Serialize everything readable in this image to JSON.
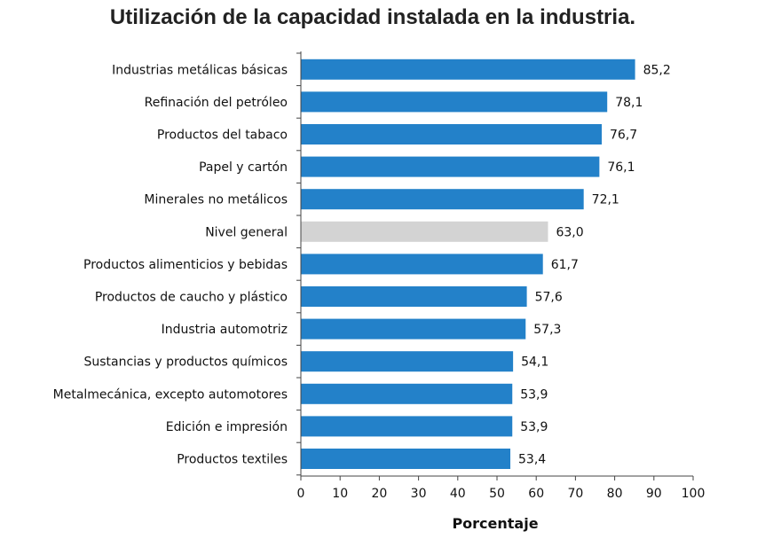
{
  "chart_data": {
    "type": "bar",
    "orientation": "horizontal",
    "title": "Utilización de la capacidad instalada en la industria.",
    "xlabel": "Porcentaje",
    "ylabel": "",
    "xlim": [
      0,
      100
    ],
    "x_ticks": [
      "0",
      "10",
      "20",
      "30",
      "40",
      "50",
      "60",
      "70",
      "80",
      "90",
      "100"
    ],
    "grid": false,
    "categories": [
      "Industrias metálicas básicas",
      "Refinación del petróleo",
      "Productos del tabaco",
      "Papel y cartón",
      "Minerales no metálicos",
      "Nivel general",
      "Productos alimenticios y bebidas",
      "Productos de caucho y plástico",
      "Industria automotriz",
      "Sustancias y productos químicos",
      "Metalmecánica, excepto automotores",
      "Edición e impresión",
      "Productos textiles"
    ],
    "values": [
      85.2,
      78.1,
      76.7,
      76.1,
      72.1,
      63.0,
      61.7,
      57.6,
      57.3,
      54.1,
      53.9,
      53.9,
      53.4
    ],
    "value_labels": [
      "85,2",
      "78,1",
      "76,7",
      "76,1",
      "72,1",
      "63,0",
      "61,7",
      "57,6",
      "57,3",
      "54,1",
      "53,9",
      "53,9",
      "53,4"
    ],
    "highlight_category": "Nivel general",
    "colors": {
      "bar": "#2381c9",
      "highlight": "#d3d3d3",
      "axis": "#444444"
    }
  }
}
